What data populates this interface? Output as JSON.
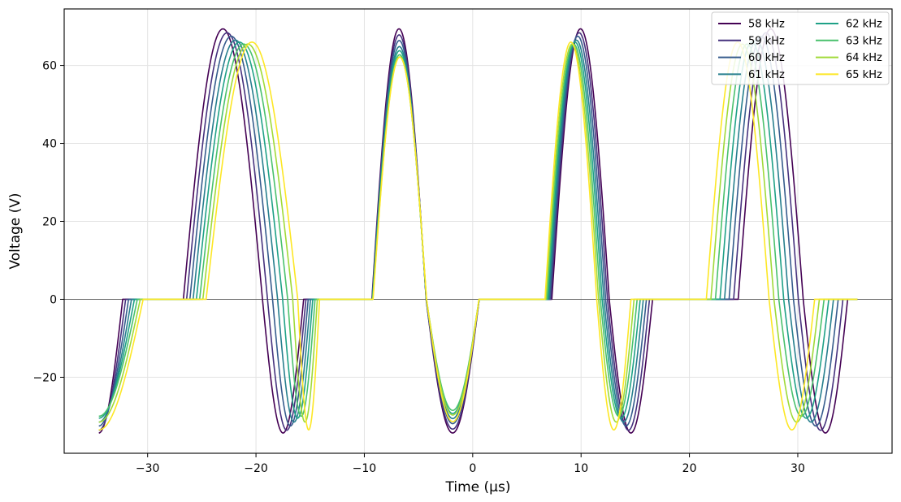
{
  "chart_data": {
    "type": "line",
    "title": "",
    "xlabel": "Time (µs)",
    "ylabel": "Voltage (V)",
    "xlim": [
      -37.7,
      38.7
    ],
    "ylim": [
      -39.5,
      74.5
    ],
    "xticks": [
      -30,
      -20,
      -10,
      0,
      10,
      20,
      30
    ],
    "xtick_labels": [
      "−30",
      "−20",
      "−10",
      "0",
      "10",
      "20",
      "30"
    ],
    "yticks": [
      -20,
      0,
      20,
      40,
      60
    ],
    "ytick_labels": [
      "−20",
      "0",
      "20",
      "40",
      "60"
    ],
    "grid": true,
    "zero_line": true,
    "legend_location": "top-right",
    "legend_columns": 2,
    "x_range_data": [
      -34.5,
      35.5
    ],
    "series_shape": "segmented burst: three positive half-cycles (~+66 to +69 V) alternating with negative half-cycles (~−29 to −34 V) separated by zero-voltage gaps; carrier frequency per series, burst envelope fixed",
    "series": [
      {
        "name": "58 kHz",
        "freq_khz": 58,
        "color": "#440154",
        "peak_v": 69.4,
        "trough_v": -34.3
      },
      {
        "name": "59 kHz",
        "freq_khz": 59,
        "color": "#46327e",
        "peak_v": 68.4,
        "trough_v": -33.6
      },
      {
        "name": "60 kHz",
        "freq_khz": 60,
        "color": "#365c8d",
        "peak_v": 67.5,
        "trough_v": -32.5
      },
      {
        "name": "61 kHz",
        "freq_khz": 61,
        "color": "#277f8e",
        "peak_v": 66.5,
        "trough_v": -31.5
      },
      {
        "name": "62 kHz",
        "freq_khz": 62,
        "color": "#1fa187",
        "peak_v": 66.0,
        "trough_v": -30.5
      },
      {
        "name": "63 kHz",
        "freq_khz": 63,
        "color": "#4ac16d",
        "peak_v": 65.5,
        "trough_v": -30.0
      },
      {
        "name": "64 kHz",
        "freq_khz": 64,
        "color": "#a0da39",
        "peak_v": 65.5,
        "trough_v": -31.5
      },
      {
        "name": "65 kHz",
        "freq_khz": 65,
        "color": "#fde725",
        "peak_v": 66.0,
        "trough_v": -33.5
      }
    ]
  }
}
